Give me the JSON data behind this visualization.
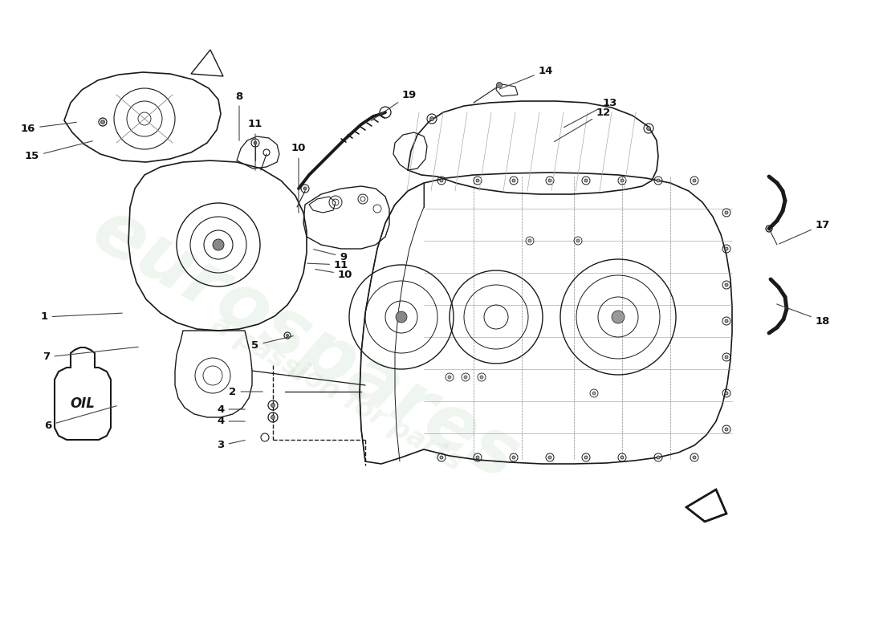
{
  "fig_width": 11.0,
  "fig_height": 8.0,
  "dpi": 100,
  "bg_color": "#ffffff",
  "line_color": "#1a1a1a",
  "lw_main": 1.0,
  "lw_thick": 1.5,
  "lw_thin": 0.6,
  "watermark1": "eurospares",
  "watermark2": "a passion for parts",
  "labels": [
    [
      1,
      155,
      390,
      55,
      395
    ],
    [
      2,
      330,
      488,
      290,
      488
    ],
    [
      3,
      308,
      548,
      275,
      555
    ],
    [
      4,
      308,
      510,
      275,
      510
    ],
    [
      4,
      308,
      525,
      275,
      525
    ],
    [
      5,
      368,
      418,
      318,
      430
    ],
    [
      6,
      148,
      505,
      60,
      530
    ],
    [
      7,
      175,
      432,
      58,
      445
    ],
    [
      8,
      298,
      178,
      298,
      120
    ],
    [
      9,
      388,
      310,
      428,
      320
    ],
    [
      10,
      372,
      268,
      372,
      185
    ],
    [
      10,
      390,
      335,
      430,
      342
    ],
    [
      11,
      318,
      215,
      318,
      155
    ],
    [
      11,
      380,
      328,
      425,
      330
    ],
    [
      12,
      688,
      178,
      752,
      140
    ],
    [
      13,
      700,
      160,
      760,
      128
    ],
    [
      14,
      620,
      112,
      680,
      88
    ],
    [
      15,
      118,
      175,
      40,
      195
    ],
    [
      16,
      98,
      152,
      35,
      160
    ],
    [
      17,
      968,
      305,
      1025,
      280
    ],
    [
      18,
      965,
      378,
      1025,
      400
    ],
    [
      19,
      460,
      152,
      510,
      118
    ]
  ]
}
